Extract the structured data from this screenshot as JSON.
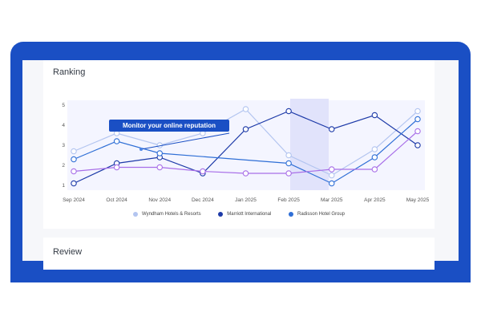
{
  "ranking": {
    "title": "Ranking"
  },
  "review": {
    "title": "Review"
  },
  "callout": {
    "text": "Monitor your online reputation"
  },
  "chart_data": {
    "type": "line",
    "title": "Ranking",
    "categories": [
      "Sep 2024",
      "Oct 2024",
      "Nov 2024",
      "Dec 2024",
      "Jan 2025",
      "Feb 2025",
      "Mar 2025",
      "Apr 2025",
      "May 2025"
    ],
    "ylim": [
      1,
      5
    ],
    "yticks": [
      "5",
      "4",
      "3",
      "2",
      "1"
    ],
    "grid": false,
    "legend_position": "bottom",
    "series": [
      {
        "name": "Wyndham Hotels & Resorts",
        "color": "#b3c5f0",
        "values": [
          2.7,
          3.6,
          3.0,
          3.6,
          4.8,
          2.5,
          1.5,
          2.8,
          4.7
        ]
      },
      {
        "name": "Marriott International",
        "color": "#1d3aa8",
        "values": [
          1.1,
          2.1,
          2.4,
          1.6,
          3.8,
          4.7,
          3.8,
          4.5,
          3.0
        ]
      },
      {
        "name": "Radisson Hotel Group",
        "color": "#2f6fd6",
        "values": [
          2.3,
          3.2,
          2.6,
          null,
          null,
          2.1,
          1.1,
          2.4,
          4.3
        ]
      },
      {
        "name": "",
        "color": "#a86fe8",
        "values": [
          1.7,
          1.9,
          1.9,
          1.7,
          1.6,
          1.6,
          1.8,
          1.8,
          3.7
        ]
      }
    ]
  }
}
